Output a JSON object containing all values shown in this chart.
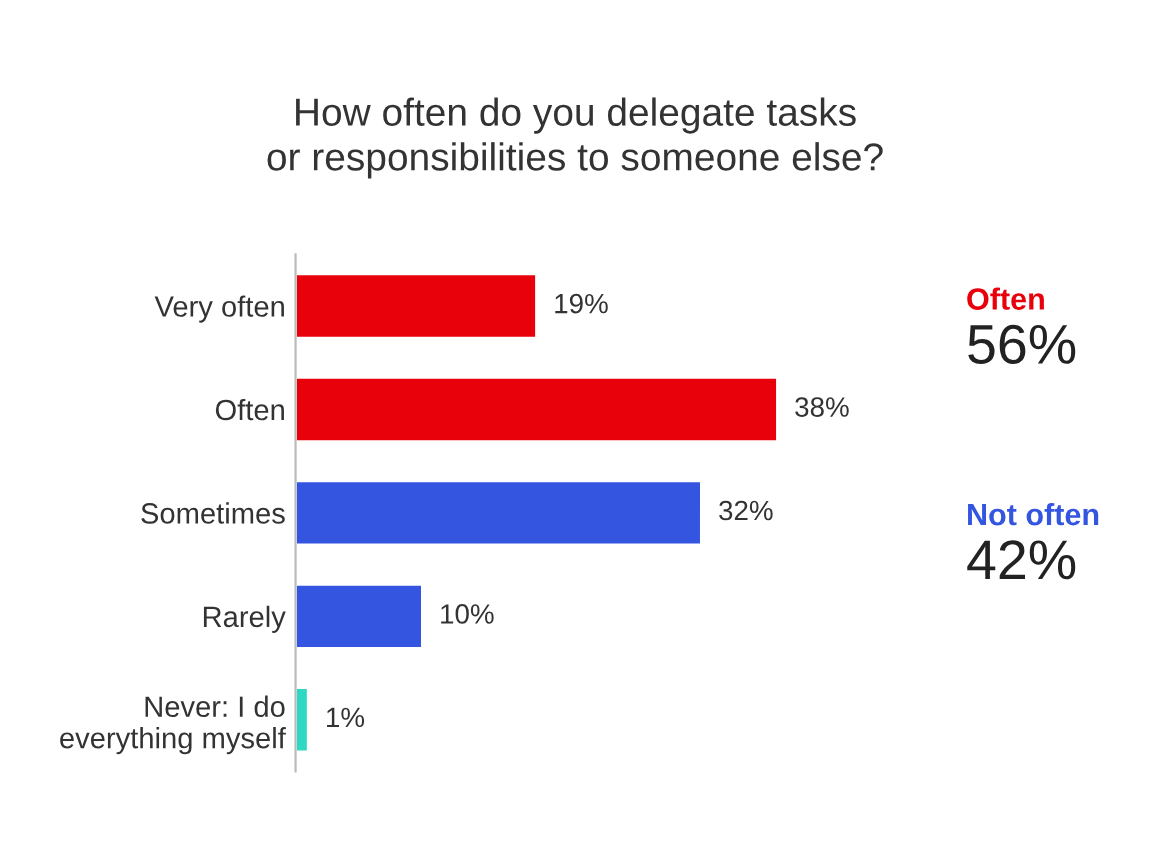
{
  "chart_data": {
    "type": "bar",
    "orientation": "horizontal",
    "title": "How often do you delegate tasks\nor responsibilities to someone else?",
    "categories": [
      "Very often",
      "Often",
      "Sometimes",
      "Rarely",
      "Never: I do\neverything myself"
    ],
    "values": [
      19,
      38,
      32,
      10,
      1
    ],
    "value_labels": [
      "19%",
      "38%",
      "32%",
      "10%",
      "1%"
    ],
    "colors": [
      "#e8000b",
      "#e8000b",
      "#3355e0",
      "#3355e0",
      "#2ed8c3"
    ],
    "annotations": [
      "Often",
      "56%",
      "Not often",
      "42%"
    ],
    "tick_labels": "y",
    "grid": false,
    "legend": false
  }
}
